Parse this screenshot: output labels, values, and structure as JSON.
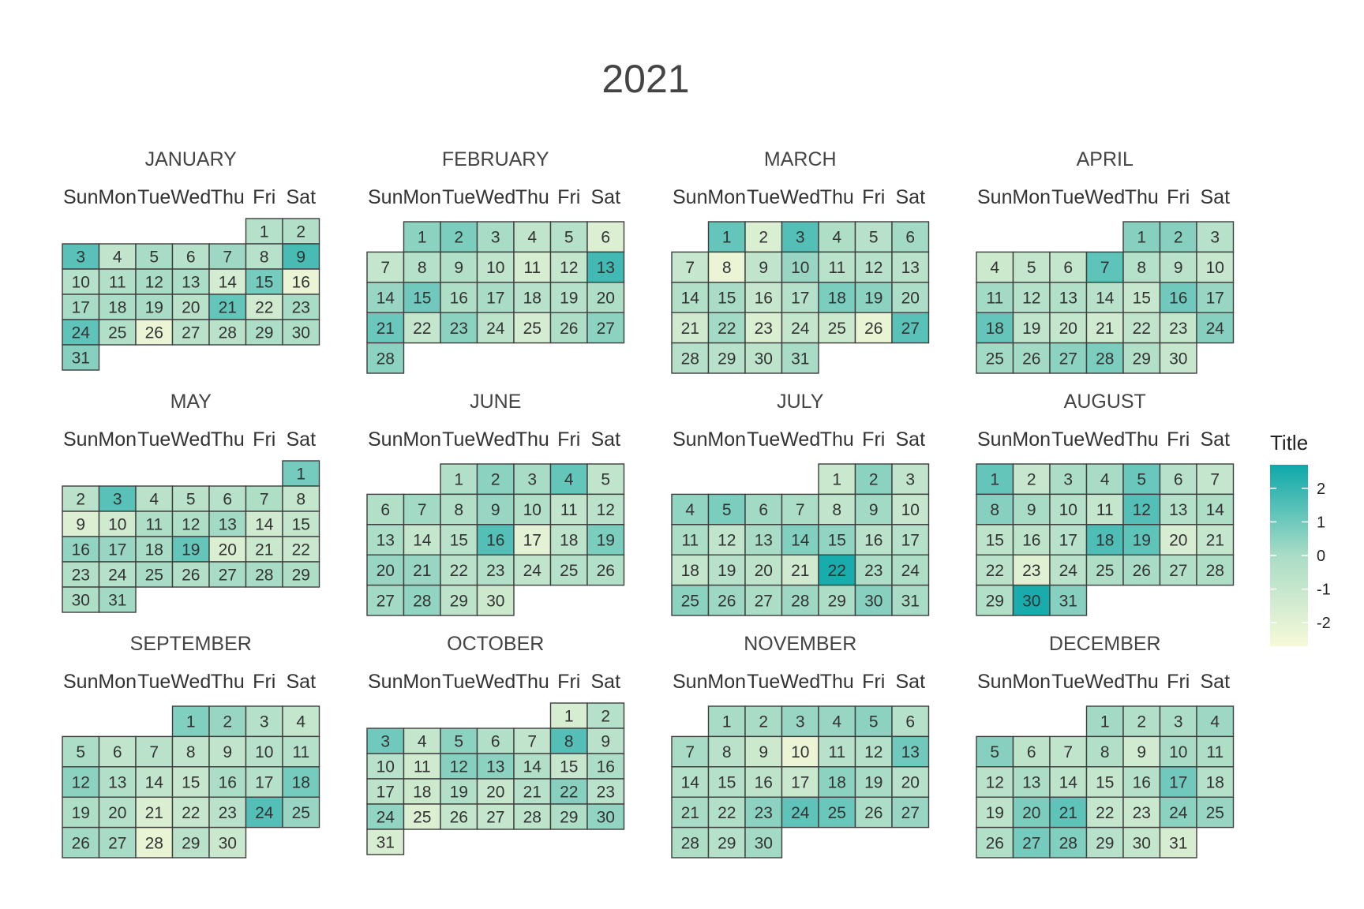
{
  "chart_data": {
    "type": "heatmap",
    "title": "2021",
    "year": 2021,
    "weekdays": [
      "Sun",
      "Mon",
      "Tue",
      "Wed",
      "Thu",
      "Fri",
      "Sat"
    ],
    "legend": {
      "title": "Title",
      "ticks": [
        2,
        1,
        0,
        -1,
        -2
      ],
      "range": [
        -2.7,
        2.7
      ],
      "placement": "right"
    },
    "color_scale": {
      "low": "#f7f9d9",
      "mid": "#a9dcc6",
      "high": "#0ea8aa"
    },
    "months": [
      {
        "name": "JANUARY",
        "values": [
          -0.4,
          -0.3,
          1.4,
          -0.8,
          0.0,
          -0.5,
          0.2,
          -0.5,
          1.7,
          -0.4,
          -0.3,
          0.0,
          -0.1,
          -1.5,
          0.9,
          -2.3,
          0.0,
          -0.1,
          0.0,
          -0.6,
          1.2,
          -1.3,
          0.0,
          1.3,
          -0.3,
          -2.3,
          -0.6,
          -0.6,
          -0.1,
          -0.2,
          0.6
        ]
      },
      {
        "name": "FEBRUARY",
        "values": [
          0.5,
          0.8,
          0.0,
          -0.8,
          -0.4,
          -1.8,
          -0.9,
          -0.4,
          -0.3,
          -0.8,
          -1.6,
          -0.9,
          1.8,
          0.3,
          1.0,
          -0.2,
          0.0,
          -0.5,
          -0.4,
          -0.2,
          1.1,
          -0.9,
          0.5,
          -0.7,
          -1.5,
          -0.2,
          0.5,
          0.5
        ]
      },
      {
        "name": "MARCH",
        "values": [
          1.2,
          -1.7,
          1.5,
          -0.2,
          -0.5,
          0.1,
          -1.0,
          -2.3,
          -0.8,
          0.3,
          -0.6,
          -0.5,
          -0.6,
          -0.3,
          0.0,
          -1.0,
          -0.4,
          0.8,
          0.5,
          -0.1,
          -1.3,
          0.1,
          -1.7,
          -0.9,
          -1.2,
          -2.2,
          1.4,
          -0.4,
          -0.5,
          -0.7,
          0.0
        ]
      },
      {
        "name": "APRIL",
        "values": [
          0.6,
          0.6,
          -0.5,
          -1.2,
          -0.9,
          -0.9,
          1.3,
          -0.4,
          -0.6,
          -1.0,
          0.1,
          -0.4,
          -0.3,
          -0.5,
          -1.0,
          1.0,
          0.3,
          1.2,
          -0.8,
          -0.9,
          -1.3,
          -0.8,
          -0.9,
          0.6,
          0.1,
          0.1,
          0.5,
          0.8,
          -0.3,
          -1.0
        ]
      },
      {
        "name": "MAY",
        "values": [
          0.9,
          -0.6,
          1.4,
          -0.6,
          -0.6,
          -0.5,
          -0.2,
          -0.9,
          -1.8,
          -1.3,
          -0.2,
          -0.2,
          0.1,
          -1.3,
          -0.9,
          0.4,
          0.3,
          0.0,
          1.2,
          -1.7,
          -1.1,
          -1.1,
          -0.3,
          -0.4,
          0.0,
          -0.3,
          0.0,
          0.0,
          -0.2,
          -0.2,
          0.1
        ]
      },
      {
        "name": "JUNE",
        "values": [
          -0.3,
          0.5,
          0.0,
          1.2,
          -0.8,
          -0.3,
          0.1,
          -0.3,
          0.3,
          -0.3,
          -0.8,
          -0.6,
          -0.1,
          -0.9,
          -0.6,
          1.5,
          -2.0,
          -0.7,
          0.8,
          0.3,
          0.3,
          -0.6,
          -0.3,
          -0.8,
          -0.4,
          -0.3,
          0.1,
          0.4,
          -0.7,
          -1.2
        ]
      },
      {
        "name": "JULY",
        "values": [
          -1.1,
          0.5,
          -0.8,
          0.4,
          0.8,
          0.1,
          -0.1,
          -0.8,
          0.1,
          -1.0,
          -0.1,
          -0.8,
          0.0,
          0.7,
          0.4,
          -0.6,
          -0.4,
          -0.9,
          -0.5,
          -0.7,
          -1.3,
          2.5,
          -0.1,
          -0.2,
          0.5,
          0.2,
          -0.1,
          0.2,
          -0.1,
          0.6,
          0.0
        ]
      },
      {
        "name": "AUGUST",
        "values": [
          1.2,
          -1.0,
          -0.1,
          0.0,
          1.1,
          -0.5,
          -0.9,
          0.6,
          0.0,
          -0.4,
          -0.9,
          1.5,
          -0.4,
          -0.2,
          -0.7,
          -0.7,
          -0.5,
          1.6,
          1.3,
          -1.6,
          -0.9,
          -0.6,
          -1.9,
          -0.6,
          -0.2,
          0.0,
          -0.3,
          -0.2,
          -0.3,
          2.5,
          0.6
        ]
      },
      {
        "name": "SEPTEMBER",
        "values": [
          0.7,
          0.3,
          -0.4,
          -0.9,
          -0.1,
          -0.8,
          -0.6,
          -0.8,
          -0.8,
          -0.5,
          -0.4,
          0.5,
          -0.3,
          -0.8,
          -1.0,
          -0.1,
          -0.4,
          0.9,
          -0.2,
          -0.4,
          -1.7,
          -1.0,
          -0.6,
          1.5,
          0.3,
          0.1,
          0.0,
          -2.2,
          -0.6,
          -1.1
        ]
      },
      {
        "name": "OCTOBER",
        "values": [
          -1.6,
          -0.4,
          1.0,
          -0.9,
          0.5,
          -0.3,
          -0.8,
          1.5,
          -0.6,
          -0.5,
          -1.3,
          0.6,
          0.5,
          -0.3,
          -1.0,
          -0.1,
          -0.7,
          -1.2,
          -0.3,
          -1.0,
          -0.5,
          0.6,
          -0.6,
          0.4,
          -1.8,
          -0.9,
          -0.9,
          -0.7,
          -0.2,
          0.4,
          -1.6
        ]
      },
      {
        "name": "NOVEMBER",
        "values": [
          0.0,
          0.0,
          0.3,
          0.3,
          0.5,
          -0.4,
          0.0,
          -0.6,
          -1.2,
          -2.3,
          -0.5,
          -0.4,
          1.0,
          -0.4,
          -0.4,
          -0.7,
          -1.1,
          0.5,
          0.0,
          -0.5,
          0.0,
          -0.3,
          0.5,
          1.3,
          1.1,
          -0.1,
          0.3,
          -0.2,
          -0.4,
          0.1
        ]
      },
      {
        "name": "DECEMBER",
        "values": [
          0.1,
          -0.3,
          -0.1,
          0.2,
          0.6,
          -0.7,
          -0.8,
          -0.3,
          -1.4,
          0.0,
          -0.2,
          -0.6,
          -0.1,
          -0.7,
          -0.9,
          -0.4,
          1.0,
          -0.4,
          -0.7,
          0.8,
          1.3,
          -0.9,
          -1.1,
          0.5,
          0.3,
          -0.3,
          0.9,
          0.7,
          -0.5,
          -0.9,
          -1.6
        ]
      }
    ]
  }
}
